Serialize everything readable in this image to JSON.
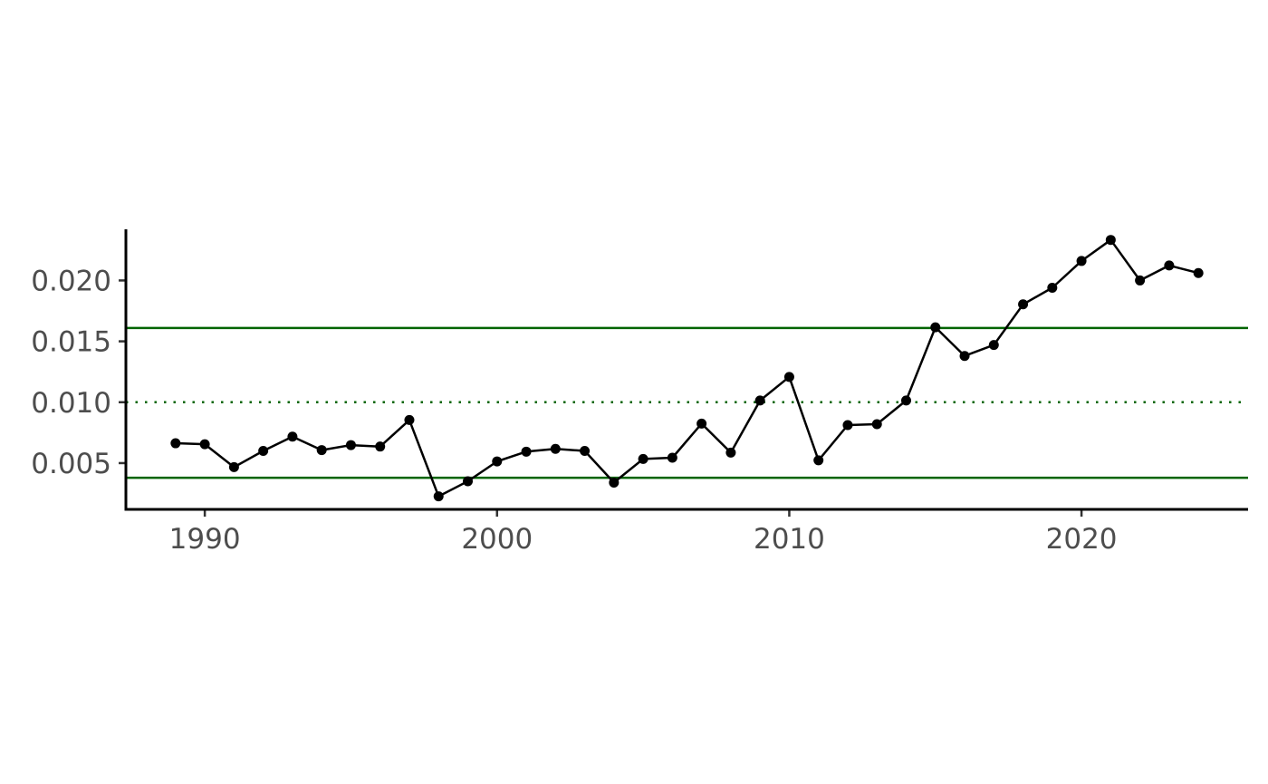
{
  "chart_data": {
    "type": "line",
    "title": "",
    "xlabel": "",
    "ylabel": "",
    "xlim": [
      1987.3,
      2025.7
    ],
    "ylim": [
      0.0012,
      0.0242
    ],
    "x_ticks": [
      1990,
      2000,
      2010,
      2020
    ],
    "x_tick_labels": [
      "1990",
      "2000",
      "2010",
      "2020"
    ],
    "y_ticks": [
      0.005,
      0.01,
      0.015,
      0.02
    ],
    "y_tick_labels": [
      "0.005",
      "0.010",
      "0.015",
      "0.020"
    ],
    "grid": false,
    "legend": "none",
    "series": [
      {
        "color": "#000000",
        "x": [
          1989,
          1990,
          1991,
          1992,
          1993,
          1994,
          1995,
          1996,
          1997,
          1998,
          1999,
          2000,
          2001,
          2002,
          2003,
          2004,
          2005,
          2006,
          2007,
          2008,
          2009,
          2010,
          2011,
          2012,
          2013,
          2014,
          2015,
          2016,
          2017,
          2018,
          2019,
          2020,
          2021,
          2022,
          2023,
          2024
        ],
        "y": [
          0.00663,
          0.00655,
          0.00467,
          0.006,
          0.00717,
          0.00607,
          0.00648,
          0.00636,
          0.00854,
          0.00227,
          0.00351,
          0.00514,
          0.00594,
          0.00617,
          0.006,
          0.0034,
          0.00534,
          0.00544,
          0.00824,
          0.00586,
          0.01014,
          0.01208,
          0.00523,
          0.00812,
          0.0082,
          0.01014,
          0.01615,
          0.0138,
          0.0147,
          0.01804,
          0.0194,
          0.0216,
          0.02333,
          0.02,
          0.02123,
          0.02061
        ]
      }
    ],
    "reference_lines": [
      {
        "y": 0.0161,
        "color": "#006400",
        "style": "solid"
      },
      {
        "y": 0.01,
        "color": "#006400",
        "style": "dotted"
      },
      {
        "y": 0.0038,
        "color": "#006400",
        "style": "solid"
      }
    ]
  }
}
